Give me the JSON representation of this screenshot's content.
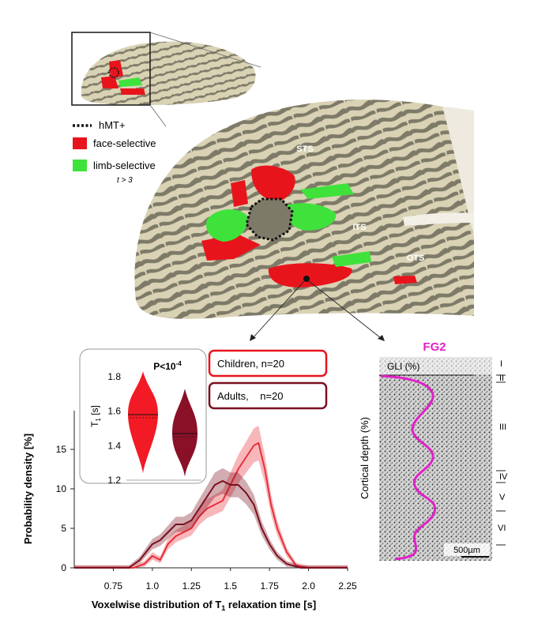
{
  "brain": {
    "legend": {
      "hmt": "hMT+",
      "face": "face-selective",
      "limb": "limb-selective",
      "threshold": "t > 3"
    },
    "sulci": {
      "sts": "STS",
      "its": "ITS",
      "ots": "OTS"
    },
    "colors": {
      "face": "#e8141c",
      "limb": "#3fe23a",
      "curv_light": "#d9d2b4",
      "curv_dark": "#7d7a68"
    }
  },
  "histology": {
    "title": "FG2",
    "gli_label": "GLI (%)",
    "ylabel": "Cortical depth (%)",
    "layers": [
      "I",
      "II",
      "III",
      "IV",
      "V",
      "VI"
    ],
    "scalebar": "500µm",
    "title_color": "#e020c8"
  },
  "legend_boxes": {
    "children": "Children, n=20",
    "adults": "Adults,    n=20",
    "children_color": "#e8141c",
    "adults_color": "#7a1020"
  },
  "chart_data": [
    {
      "type": "line",
      "xlabel": "Voxelwise distribution of T",
      "xlabel_sub": "1",
      "xlabel_tail": " relaxation time [s]",
      "ylabel": "Probability density [%]",
      "xlim": [
        0.5,
        2.25
      ],
      "ylim": [
        0,
        20
      ],
      "xticks": [
        "0.75",
        "1.0",
        "1.25",
        "1.5",
        "1.75",
        "2.0",
        "2.25"
      ],
      "yticks": [
        "0",
        "5",
        "10",
        "15"
      ],
      "series": [
        {
          "name": "Children, n=20",
          "color": "#e8303a",
          "x": [
            0.5,
            0.88,
            0.95,
            1.0,
            1.05,
            1.1,
            1.15,
            1.2,
            1.25,
            1.3,
            1.35,
            1.4,
            1.45,
            1.5,
            1.55,
            1.6,
            1.65,
            1.68,
            1.72,
            1.76,
            1.8,
            1.86,
            1.92,
            2.0,
            2.25
          ],
          "y": [
            0,
            0,
            0.5,
            1.5,
            1.0,
            3.0,
            4.0,
            4.5,
            5.0,
            6.5,
            7.5,
            8.0,
            8.5,
            10.5,
            12.5,
            14.0,
            15.5,
            15.8,
            12.5,
            8.0,
            5.0,
            2.0,
            0.3,
            0,
            0
          ]
        },
        {
          "name": "Adults,    n=20",
          "color": "#7a1020",
          "x": [
            0.5,
            0.85,
            0.92,
            1.0,
            1.05,
            1.1,
            1.15,
            1.2,
            1.25,
            1.3,
            1.35,
            1.4,
            1.45,
            1.5,
            1.55,
            1.6,
            1.65,
            1.7,
            1.75,
            1.8,
            1.86,
            1.95,
            2.25
          ],
          "y": [
            0,
            0,
            1.0,
            3.0,
            3.5,
            4.5,
            5.5,
            5.5,
            6.0,
            7.5,
            9.0,
            10.5,
            11.0,
            10.5,
            10.5,
            9.5,
            8.0,
            5.0,
            3.0,
            1.5,
            0.5,
            0,
            0
          ]
        }
      ]
    },
    {
      "type": "violin",
      "title": "P<10",
      "title_sup": "-4",
      "ylabel": "T",
      "ylabel_sub": "1",
      "ylabel_unit": " [s]",
      "ylim": [
        1.2,
        1.85
      ],
      "yticks": [
        "1.2",
        "1.4",
        "1.6",
        "1.8"
      ],
      "groups": [
        {
          "name": "Children, n=20",
          "median": 1.58,
          "min": 1.24,
          "max": 1.83,
          "color": "#f21a24"
        },
        {
          "name": "Adults,    n=20",
          "median": 1.47,
          "min": 1.22,
          "max": 1.73,
          "color": "#8a1028"
        }
      ]
    }
  ]
}
